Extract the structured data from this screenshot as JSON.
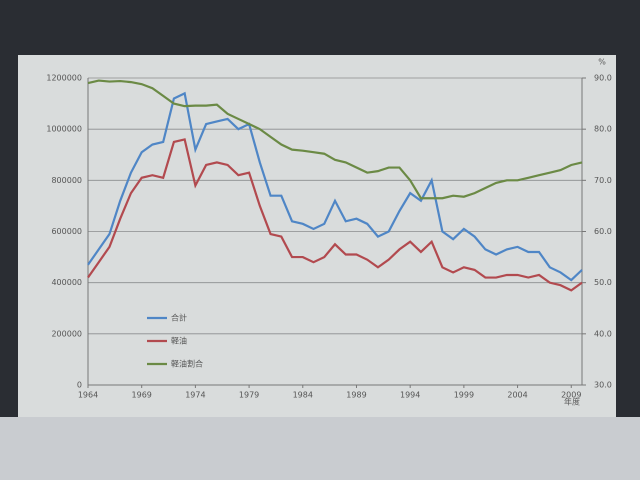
{
  "chart_data": {
    "type": "line",
    "x_label": "年度",
    "y2_label": "%",
    "x": [
      1964,
      1965,
      1966,
      1967,
      1968,
      1969,
      1970,
      1971,
      1972,
      1973,
      1974,
      1975,
      1976,
      1977,
      1978,
      1979,
      1980,
      1981,
      1982,
      1983,
      1984,
      1985,
      1986,
      1987,
      1988,
      1989,
      1990,
      1991,
      1992,
      1993,
      1994,
      1995,
      1996,
      1997,
      1998,
      1999,
      2000,
      2001,
      2002,
      2003,
      2004,
      2005,
      2006,
      2007,
      2008,
      2009,
      2010
    ],
    "xlim": [
      1964,
      2010
    ],
    "xticks": [
      1964,
      1969,
      1974,
      1979,
      1984,
      1989,
      1994,
      1999,
      2004,
      2009
    ],
    "ylim": [
      0,
      1200000
    ],
    "yticks": [
      0,
      200000,
      400000,
      600000,
      800000,
      1000000,
      1200000
    ],
    "y2lim": [
      30,
      90
    ],
    "y2ticks": [
      {
        "value": 30,
        "label": "30.0"
      },
      {
        "value": 40,
        "label": "40.0"
      },
      {
        "value": 50,
        "label": "50.0"
      },
      {
        "value": 60,
        "label": "60.0"
      },
      {
        "value": 70,
        "label": "70.0"
      },
      {
        "value": 80,
        "label": "80.0"
      },
      {
        "value": 90,
        "label": "90.0"
      }
    ],
    "grid": true,
    "legend": "left",
    "series": [
      {
        "name": "合計",
        "color": "#4f86c6",
        "values": [
          470000,
          530000,
          590000,
          720000,
          830000,
          910000,
          940000,
          950000,
          1120000,
          1140000,
          920000,
          1020000,
          1030000,
          1040000,
          1000000,
          1020000,
          870000,
          740000,
          740000,
          640000,
          630000,
          610000,
          630000,
          720000,
          640000,
          650000,
          630000,
          580000,
          600000,
          680000,
          750000,
          720000,
          800000,
          600000,
          570000,
          610000,
          580000,
          530000,
          510000,
          530000,
          540000,
          520000,
          520000,
          460000,
          440000,
          410000,
          450000
        ]
      },
      {
        "name": "軽油",
        "color": "#b24a4f",
        "values": [
          420000,
          480000,
          540000,
          650000,
          750000,
          810000,
          820000,
          810000,
          950000,
          960000,
          780000,
          860000,
          870000,
          860000,
          820000,
          830000,
          700000,
          590000,
          580000,
          500000,
          500000,
          480000,
          500000,
          550000,
          510000,
          510000,
          490000,
          460000,
          490000,
          530000,
          560000,
          520000,
          560000,
          460000,
          440000,
          460000,
          450000,
          420000,
          420000,
          430000,
          430000,
          420000,
          430000,
          400000,
          390000,
          370000,
          400000
        ]
      },
      {
        "name": "軽油割合",
        "color": "#6b8a45",
        "axis": "y2",
        "values": [
          89.0,
          89.5,
          89.3,
          89.4,
          89.2,
          88.8,
          88.0,
          86.5,
          85.0,
          84.5,
          84.6,
          84.6,
          84.8,
          83.0,
          82.0,
          81.0,
          80.0,
          78.5,
          77.0,
          76.0,
          75.8,
          75.5,
          75.2,
          74.0,
          73.5,
          72.5,
          71.5,
          71.8,
          72.5,
          72.5,
          70.0,
          66.5,
          66.5,
          66.5,
          67.0,
          66.8,
          67.5,
          68.5,
          69.5,
          70.0,
          70.0,
          70.5,
          71.0,
          71.5,
          72.0,
          73.0,
          73.5
        ]
      }
    ]
  }
}
